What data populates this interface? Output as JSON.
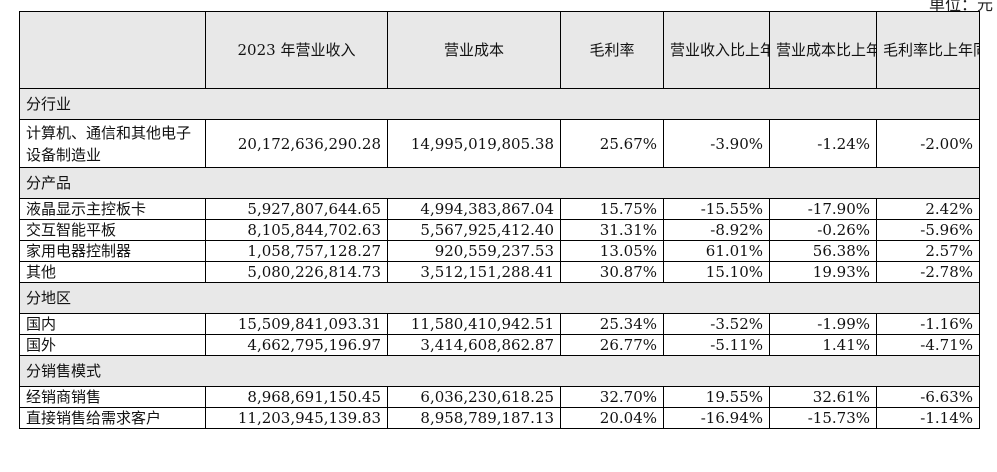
{
  "unit_text": "单位：元",
  "header": {
    "col0": "",
    "col1": "2023 年营业收入",
    "col2": "营业成本",
    "col3": "毛利率",
    "col4": "营业收入比上年同期增减",
    "col5": "营业成本比上年同期增减",
    "col6": "毛利率比上年同期增减"
  },
  "sections": [
    {
      "title": "分行业",
      "rows": [
        {
          "label": "计算机、通信和其他电子设备制造业",
          "revenue": "20,172,636,290.28",
          "cost": "14,995,019,805.38",
          "margin": "25.67%",
          "rev_change": "-3.90%",
          "cost_change": "-1.24%",
          "margin_change": "-2.00%"
        }
      ]
    },
    {
      "title": "分产品",
      "rows": [
        {
          "label": "液晶显示主控板卡",
          "revenue": "5,927,807,644.65",
          "cost": "4,994,383,867.04",
          "margin": "15.75%",
          "rev_change": "-15.55%",
          "cost_change": "-17.90%",
          "margin_change": "2.42%"
        },
        {
          "label": "交互智能平板",
          "revenue": "8,105,844,702.63",
          "cost": "5,567,925,412.40",
          "margin": "31.31%",
          "rev_change": "-8.92%",
          "cost_change": "-0.26%",
          "margin_change": "-5.96%"
        },
        {
          "label": "家用电器控制器",
          "revenue": "1,058,757,128.27",
          "cost": "920,559,237.53",
          "margin": "13.05%",
          "rev_change": "61.01%",
          "cost_change": "56.38%",
          "margin_change": "2.57%"
        },
        {
          "label": "其他",
          "revenue": "5,080,226,814.73",
          "cost": "3,512,151,288.41",
          "margin": "30.87%",
          "rev_change": "15.10%",
          "cost_change": "19.93%",
          "margin_change": "-2.78%"
        }
      ]
    },
    {
      "title": "分地区",
      "rows": [
        {
          "label": "国内",
          "revenue": "15,509,841,093.31",
          "cost": "11,580,410,942.51",
          "margin": "25.34%",
          "rev_change": "-3.52%",
          "cost_change": "-1.99%",
          "margin_change": "-1.16%"
        },
        {
          "label": "国外",
          "revenue": "4,662,795,196.97",
          "cost": "3,414,608,862.87",
          "margin": "26.77%",
          "rev_change": "-5.11%",
          "cost_change": "1.41%",
          "margin_change": "-4.71%"
        }
      ]
    },
    {
      "title": "分销售模式",
      "rows": [
        {
          "label": "经销商销售",
          "revenue": "8,968,691,150.45",
          "cost": "6,036,230,618.25",
          "margin": "32.70%",
          "rev_change": "19.55%",
          "cost_change": "32.61%",
          "margin_change": "-6.63%"
        },
        {
          "label": "直接销售给需求客户",
          "revenue": "11,203,945,139.83",
          "cost": "8,958,789,187.13",
          "margin": "20.04%",
          "rev_change": "-16.94%",
          "cost_change": "-15.73%",
          "margin_change": "-1.14%"
        }
      ]
    }
  ]
}
